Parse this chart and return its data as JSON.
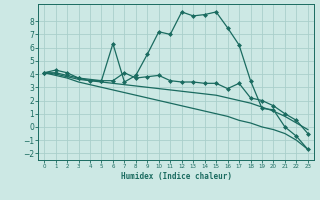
{
  "xlabel": "Humidex (Indice chaleur)",
  "bg_color": "#cce8e4",
  "grid_color": "#aacfcb",
  "line_color": "#1a6b60",
  "xlim": [
    -0.5,
    23.5
  ],
  "ylim": [
    -2.5,
    9.3
  ],
  "xticks": [
    0,
    1,
    2,
    3,
    4,
    5,
    6,
    7,
    8,
    9,
    10,
    11,
    12,
    13,
    14,
    15,
    16,
    17,
    18,
    19,
    20,
    21,
    22,
    23
  ],
  "yticks": [
    -2,
    -1,
    0,
    1,
    2,
    3,
    4,
    5,
    6,
    7,
    8
  ],
  "line1_x": [
    0,
    1,
    2,
    3,
    4,
    5,
    6,
    7,
    8,
    9,
    10,
    11,
    12,
    13,
    14,
    15,
    16,
    17,
    18,
    19,
    20,
    21,
    22,
    23
  ],
  "line1_y": [
    4.1,
    4.3,
    4.1,
    3.7,
    3.5,
    3.5,
    6.3,
    3.4,
    3.9,
    5.5,
    7.2,
    7.0,
    8.7,
    8.4,
    8.5,
    8.7,
    7.5,
    6.2,
    3.5,
    1.4,
    1.3,
    0.0,
    -0.7,
    -1.7
  ],
  "line2_x": [
    0,
    1,
    2,
    3,
    5,
    6,
    7,
    8,
    9,
    10,
    11,
    12,
    13,
    14,
    15,
    16,
    17,
    18,
    19,
    20,
    21,
    22,
    23
  ],
  "line2_y": [
    4.1,
    4.1,
    3.9,
    3.7,
    3.5,
    3.5,
    4.1,
    3.7,
    3.8,
    3.9,
    3.5,
    3.4,
    3.4,
    3.3,
    3.3,
    2.9,
    3.3,
    2.2,
    2.0,
    1.6,
    1.0,
    0.5,
    -0.5
  ],
  "line3_x": [
    0,
    1,
    2,
    3,
    4,
    5,
    6,
    7,
    8,
    9,
    10,
    11,
    12,
    13,
    14,
    15,
    16,
    17,
    18,
    19,
    20,
    21,
    22,
    23
  ],
  "line3_y": [
    4.1,
    4.0,
    3.8,
    3.6,
    3.5,
    3.4,
    3.3,
    3.2,
    3.1,
    3.0,
    2.9,
    2.8,
    2.7,
    2.6,
    2.5,
    2.4,
    2.2,
    2.0,
    1.8,
    1.5,
    1.2,
    0.8,
    0.3,
    -0.2
  ],
  "line4_x": [
    0,
    1,
    2,
    3,
    4,
    5,
    6,
    7,
    8,
    9,
    10,
    11,
    12,
    13,
    14,
    15,
    16,
    17,
    18,
    19,
    20,
    21,
    22,
    23
  ],
  "line4_y": [
    4.1,
    3.9,
    3.7,
    3.4,
    3.2,
    3.0,
    2.8,
    2.6,
    2.4,
    2.2,
    2.0,
    1.8,
    1.6,
    1.4,
    1.2,
    1.0,
    0.8,
    0.5,
    0.3,
    0.0,
    -0.2,
    -0.5,
    -1.0,
    -1.7
  ]
}
